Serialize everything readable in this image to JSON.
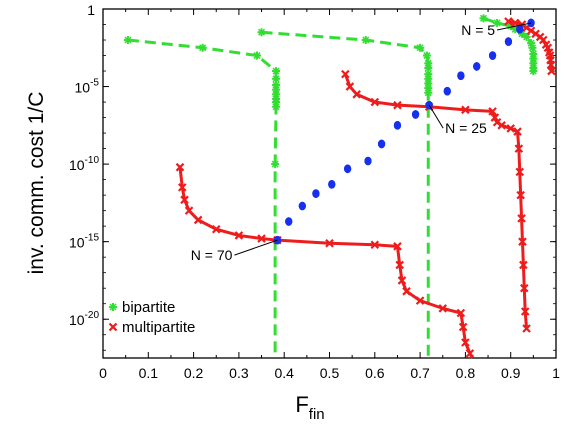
{
  "chart_data": {
    "type": "line",
    "xlabel": "F",
    "xlabel_sub": "fin",
    "ylabel": "inv. comm. cost 1/C",
    "xlim": [
      0,
      1
    ],
    "ylim_log10": [
      -22.5,
      0
    ],
    "y_scale": "log",
    "x_ticks": [
      {
        "v": 0,
        "label": "0"
      },
      {
        "v": 0.1,
        "label": "0.1"
      },
      {
        "v": 0.2,
        "label": "0.2"
      },
      {
        "v": 0.3,
        "label": "0.3"
      },
      {
        "v": 0.4,
        "label": "0.4"
      },
      {
        "v": 0.5,
        "label": "0.5"
      },
      {
        "v": 0.6,
        "label": "0.6"
      },
      {
        "v": 0.7,
        "label": "0.7"
      },
      {
        "v": 0.8,
        "label": "0.8"
      },
      {
        "v": 0.9,
        "label": "0.9"
      },
      {
        "v": 1,
        "label": "1"
      }
    ],
    "y_ticks": [
      {
        "v": 0,
        "base": "1",
        "exp": ""
      },
      {
        "v": -5,
        "base": "10",
        "exp": "-5"
      },
      {
        "v": -10,
        "base": "10",
        "exp": "-10"
      },
      {
        "v": -15,
        "base": "10",
        "exp": "-15"
      },
      {
        "v": -20,
        "base": "10",
        "exp": "-20"
      }
    ],
    "legend": {
      "position": "bottom-left",
      "entries": [
        {
          "name": "bipartite",
          "color": "#33dd33",
          "marker": "star"
        },
        {
          "name": "multipartite",
          "color": "#ee1c1c",
          "marker": "x"
        }
      ]
    },
    "series": [
      {
        "name": "bipartite",
        "color": "#33dd33",
        "style": "dashed",
        "segments": [
          {
            "x": [
              0.055,
              0.22,
              0.34,
              0.382,
              0.382,
              0.382,
              0.382,
              0.382,
              0.382,
              0.382,
              0.382,
              0.38,
              0.38
            ],
            "y": [
              -2.0,
              -2.5,
              -3.0,
              -4.0,
              -4.5,
              -4.9,
              -5.2,
              -5.5,
              -5.8,
              -6.0,
              -6.3,
              -10,
              -22.5
            ]
          },
          {
            "x": [
              0.35,
              0.58,
              0.7,
              0.715,
              0.718,
              0.718,
              0.718,
              0.718,
              0.718,
              0.718,
              0.718,
              0.718
            ],
            "y": [
              -1.5,
              -2.0,
              -2.5,
              -3.0,
              -3.5,
              -3.8,
              -4.2,
              -4.5,
              -4.8,
              -5.1,
              -5.4,
              -22.5
            ]
          },
          {
            "x": [
              0.84,
              0.87,
              0.9,
              0.91,
              0.925,
              0.935,
              0.945,
              0.948,
              0.95,
              0.95,
              0.95,
              0.95,
              0.95
            ],
            "y": [
              -0.6,
              -0.9,
              -1.1,
              -1.3,
              -1.6,
              -1.8,
              -2.2,
              -2.5,
              -2.9,
              -3.2,
              -3.5,
              -3.8,
              -4.0
            ]
          }
        ]
      },
      {
        "name": "multipartite",
        "color": "#ee1c1c",
        "style": "solid",
        "segments": [
          {
            "x": [
              0.17,
              0.175,
              0.18,
              0.19,
              0.21,
              0.25,
              0.3,
              0.35,
              0.385,
              0.5,
              0.6,
              0.65,
              0.655,
              0.66,
              0.67,
              0.7,
              0.75,
              0.79,
              0.795,
              0.8,
              0.81,
              0.815
            ],
            "y": [
              -10.2,
              -11.5,
              -12.3,
              -13.0,
              -13.6,
              -14.2,
              -14.6,
              -14.8,
              -14.9,
              -15.1,
              -15.2,
              -15.3,
              -16.5,
              -17.5,
              -18.2,
              -18.8,
              -19.3,
              -19.6,
              -20.5,
              -21.5,
              -22.2,
              -22.5
            ]
          },
          {
            "x": [
              0.535,
              0.545,
              0.56,
              0.6,
              0.65,
              0.72,
              0.8,
              0.86,
              0.865,
              0.87,
              0.88,
              0.9,
              0.915,
              0.918,
              0.92,
              0.922,
              0.924,
              0.926,
              0.928,
              0.93,
              0.932,
              0.935
            ],
            "y": [
              -4.2,
              -5.0,
              -5.5,
              -6.0,
              -6.2,
              -6.3,
              -6.5,
              -6.6,
              -7.0,
              -7.3,
              -7.5,
              -7.7,
              -7.9,
              -9,
              -10.5,
              -12,
              -13.5,
              -15,
              -16.5,
              -18,
              -19.5,
              -20.6
            ]
          },
          {
            "x": [
              0.895,
              0.91,
              0.925,
              0.935,
              0.945,
              0.955,
              0.965,
              0.972,
              0.978,
              0.982,
              0.985,
              0.987,
              0.988,
              0.989,
              0.99
            ],
            "y": [
              -0.8,
              -0.9,
              -1.0,
              -1.2,
              -1.4,
              -1.6,
              -1.8,
              -2.0,
              -2.3,
              -2.5,
              -2.8,
              -3.0,
              -3.3,
              -3.6,
              -4.0
            ]
          }
        ]
      },
      {
        "name": "blue",
        "color": "#1530ee",
        "style": "points",
        "points": [
          {
            "x": 0.385,
            "y": -14.9
          },
          {
            "x": 0.41,
            "y": -13.7
          },
          {
            "x": 0.44,
            "y": -12.7
          },
          {
            "x": 0.47,
            "y": -11.9
          },
          {
            "x": 0.505,
            "y": -11.3
          },
          {
            "x": 0.54,
            "y": -10.3
          },
          {
            "x": 0.585,
            "y": -9.8
          },
          {
            "x": 0.615,
            "y": -8.7
          },
          {
            "x": 0.65,
            "y": -7.5
          },
          {
            "x": 0.69,
            "y": -6.8
          },
          {
            "x": 0.72,
            "y": -6.2
          },
          {
            "x": 0.76,
            "y": -5.3
          },
          {
            "x": 0.79,
            "y": -4.3
          },
          {
            "x": 0.825,
            "y": -3.7
          },
          {
            "x": 0.86,
            "y": -3.0
          },
          {
            "x": 0.895,
            "y": -2.1
          },
          {
            "x": 0.92,
            "y": -1.3
          },
          {
            "x": 0.945,
            "y": -0.9
          }
        ]
      }
    ],
    "annotations": [
      {
        "text": "N = 70",
        "x": 0.385,
        "y": -14.9
      },
      {
        "text": "N = 25",
        "x": 0.72,
        "y": -6.2
      },
      {
        "text": "N = 5",
        "x": 0.945,
        "y": -0.9
      }
    ]
  }
}
